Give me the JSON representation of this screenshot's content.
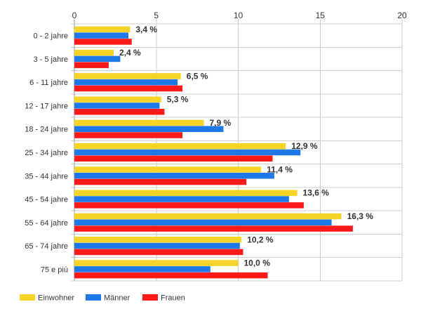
{
  "chart_data": {
    "type": "bar",
    "orientation": "horizontal",
    "title": "",
    "xlabel": "",
    "ylabel": "",
    "xlim": [
      0,
      20
    ],
    "x_ticks": [
      "0",
      "5",
      "10",
      "15",
      "20"
    ],
    "x_tick_position": "top",
    "grid": true,
    "legend_position": "bottom-left",
    "categories": [
      "0 - 2 jahre",
      "3 - 5 jahre",
      "6 - 11 jahre",
      "12 - 17 jahre",
      "18 - 24 jahre",
      "25 - 34 jahre",
      "35 - 44 jahre",
      "45 - 54 jahre",
      "55 - 64 jahre",
      "65 - 74 jahre",
      "75 e più"
    ],
    "series": [
      {
        "name": "Einwohner",
        "color": "#f5d327",
        "values": [
          3.4,
          2.4,
          6.5,
          5.3,
          7.9,
          12.9,
          11.4,
          13.6,
          16.3,
          10.2,
          10.0
        ]
      },
      {
        "name": "Männer",
        "color": "#1f78e8",
        "values": [
          3.3,
          2.8,
          6.3,
          5.2,
          9.1,
          13.8,
          12.2,
          13.1,
          15.7,
          10.1,
          8.3
        ]
      },
      {
        "name": "Frauen",
        "color": "#ff1a1a",
        "values": [
          3.5,
          2.1,
          6.6,
          5.5,
          6.6,
          12.1,
          10.5,
          14.0,
          17.0,
          10.3,
          11.8
        ]
      }
    ],
    "data_labels": [
      "3,4 %",
      "2,4 %",
      "6,5 %",
      "5,3 %",
      "7,9 %",
      "12,9 %",
      "11,4 %",
      "13,6 %",
      "16,3 %",
      "10,2 %",
      "10,0 %"
    ]
  }
}
